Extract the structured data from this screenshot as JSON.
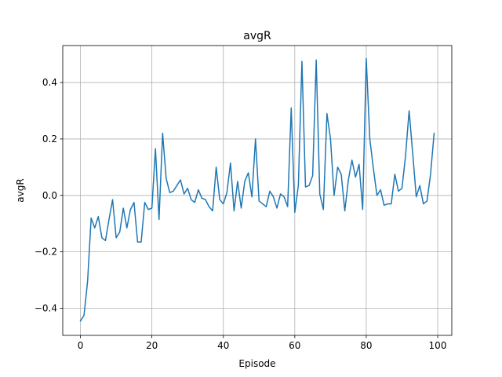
{
  "chart_data": {
    "type": "line",
    "title": "avgR",
    "xlabel": "Episode",
    "ylabel": "avgR",
    "xlim": [
      -4.95,
      103.95
    ],
    "ylim": [
      -0.496,
      0.531
    ],
    "grid": true,
    "line_color": "#1f77b4",
    "xticks": [
      {
        "value": 0,
        "label": "0"
      },
      {
        "value": 20,
        "label": "20"
      },
      {
        "value": 40,
        "label": "40"
      },
      {
        "value": 60,
        "label": "60"
      },
      {
        "value": 80,
        "label": "80"
      },
      {
        "value": 100,
        "label": "100"
      }
    ],
    "yticks": [
      {
        "value": -0.4,
        "label": "−0.4"
      },
      {
        "value": -0.2,
        "label": "−0.2"
      },
      {
        "value": 0.0,
        "label": "0.0"
      },
      {
        "value": 0.2,
        "label": "0.2"
      },
      {
        "value": 0.4,
        "label": "0.4"
      }
    ],
    "series": [
      {
        "x": [
          0,
          1,
          2,
          3,
          4,
          5,
          6,
          7,
          8,
          9,
          10,
          11,
          12,
          13,
          14,
          15,
          16,
          17,
          18,
          19,
          20,
          21,
          22,
          23,
          24,
          25,
          26,
          27,
          28,
          29,
          30,
          31,
          32,
          33,
          34,
          35,
          36,
          37,
          38,
          39,
          40,
          41,
          42,
          43,
          44,
          45,
          46,
          47,
          48,
          49,
          50,
          51,
          52,
          53,
          54,
          55,
          56,
          57,
          58,
          59,
          60,
          61,
          62,
          63,
          64,
          65,
          66,
          67,
          68,
          69,
          70,
          71,
          72,
          73,
          74,
          75,
          76,
          77,
          78,
          79,
          80,
          81,
          82,
          83,
          84,
          85,
          86,
          87,
          88,
          89,
          90,
          91,
          92,
          93,
          94,
          95,
          96,
          97,
          98,
          99
        ],
        "values": [
          -0.445,
          -0.425,
          -0.305,
          -0.08,
          -0.115,
          -0.075,
          -0.15,
          -0.16,
          -0.085,
          -0.015,
          -0.15,
          -0.13,
          -0.045,
          -0.115,
          -0.05,
          -0.025,
          -0.165,
          -0.165,
          -0.025,
          -0.05,
          -0.045,
          0.165,
          -0.085,
          0.22,
          0.06,
          0.01,
          0.015,
          0.035,
          0.055,
          0.005,
          0.025,
          -0.015,
          -0.025,
          0.02,
          -0.01,
          -0.015,
          -0.04,
          -0.055,
          0.1,
          -0.015,
          -0.03,
          0.01,
          0.115,
          -0.055,
          0.05,
          -0.045,
          0.05,
          0.08,
          -0.005,
          0.2,
          -0.02,
          -0.03,
          -0.04,
          0.015,
          -0.005,
          -0.045,
          0.005,
          -0.005,
          -0.04,
          0.31,
          -0.06,
          0.035,
          0.475,
          0.03,
          0.035,
          0.07,
          0.48,
          0.005,
          -0.05,
          0.29,
          0.2,
          0.0,
          0.1,
          0.075,
          -0.055,
          0.055,
          0.125,
          0.065,
          0.11,
          -0.05,
          0.485,
          0.2,
          0.095,
          0.0,
          0.02,
          -0.035,
          -0.03,
          -0.03,
          0.075,
          0.015,
          0.025,
          0.14,
          0.3,
          0.15,
          -0.005,
          0.035,
          -0.03,
          -0.02,
          0.075,
          0.22
        ]
      }
    ]
  }
}
